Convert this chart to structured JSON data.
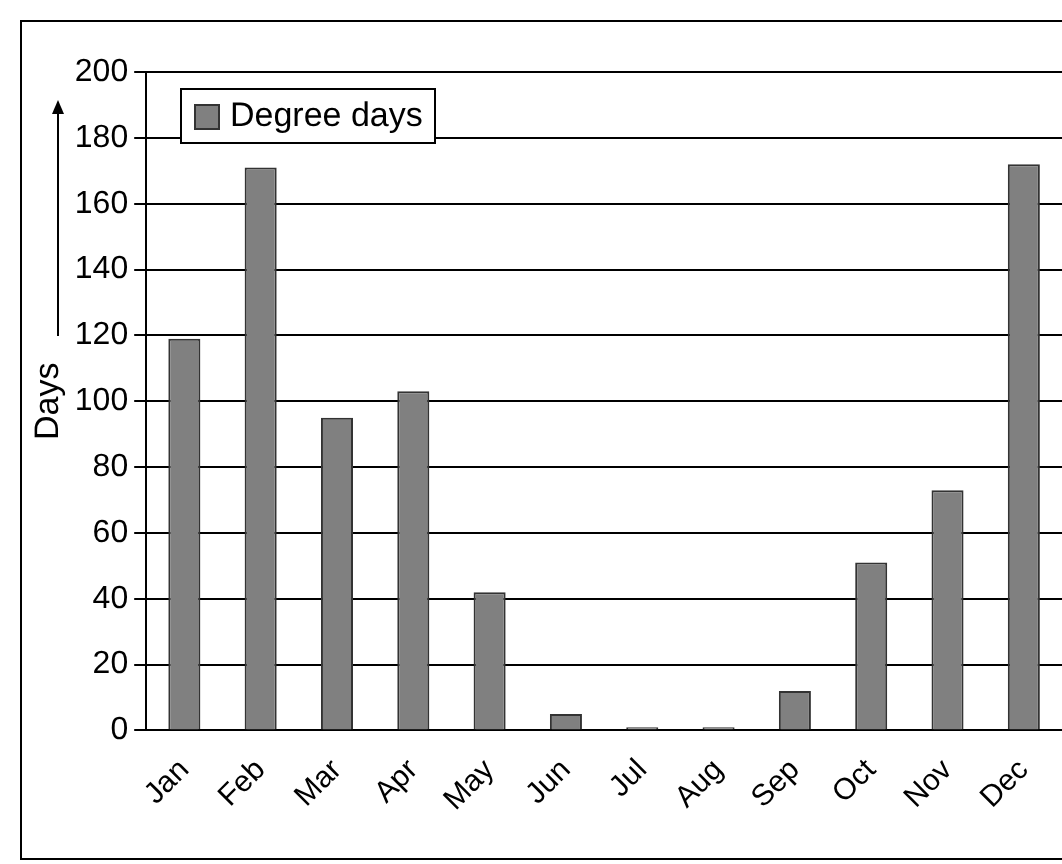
{
  "chart_data": {
    "type": "bar",
    "ylabel": "Days",
    "categories": [
      "Jan",
      "Feb",
      "Mar",
      "Apr",
      "May",
      "Jun",
      "Jul",
      "Aug",
      "Sep",
      "Oct",
      "Nov",
      "Dec"
    ],
    "series": [
      {
        "name": "Degree days",
        "color": "#808080",
        "values": [
          119,
          171,
          95,
          103,
          42,
          5,
          1,
          1,
          12,
          51,
          73,
          172
        ]
      }
    ],
    "ylim": [
      0,
      200
    ],
    "yticks": [
      0,
      20,
      40,
      60,
      80,
      100,
      120,
      140,
      160,
      180,
      200
    ],
    "grid": "y",
    "legend": "top left"
  }
}
